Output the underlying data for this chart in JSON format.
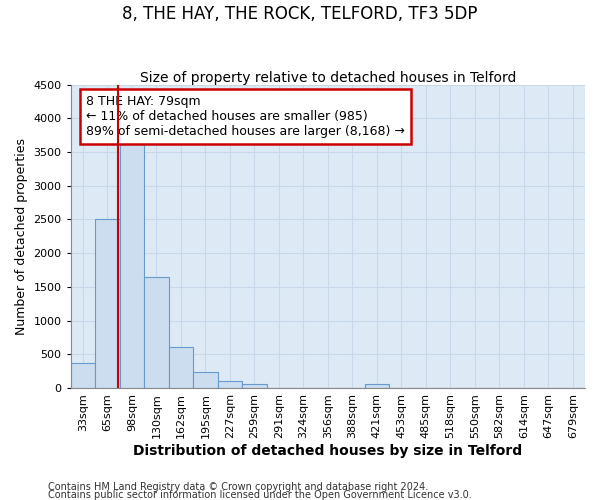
{
  "title": "8, THE HAY, THE ROCK, TELFORD, TF3 5DP",
  "subtitle": "Size of property relative to detached houses in Telford",
  "xlabel": "Distribution of detached houses by size in Telford",
  "ylabel": "Number of detached properties",
  "categories": [
    "33sqm",
    "65sqm",
    "98sqm",
    "130sqm",
    "162sqm",
    "195sqm",
    "227sqm",
    "259sqm",
    "291sqm",
    "324sqm",
    "356sqm",
    "388sqm",
    "421sqm",
    "453sqm",
    "485sqm",
    "518sqm",
    "550sqm",
    "582sqm",
    "614sqm",
    "647sqm",
    "679sqm"
  ],
  "values": [
    375,
    2500,
    3720,
    1640,
    600,
    240,
    105,
    65,
    0,
    0,
    0,
    0,
    65,
    0,
    0,
    0,
    0,
    0,
    0,
    0,
    0
  ],
  "bar_color": "#ccddf0",
  "bar_edge_color": "#6699cc",
  "grid_color": "#c8d8ea",
  "background_color": "#ddeaf5",
  "fig_background": "#ffffff",
  "annotation_line1": "8 THE HAY: 79sqm",
  "annotation_line2": "← 11% of detached houses are smaller (985)",
  "annotation_line3": "89% of semi-detached houses are larger (8,168) →",
  "annotation_box_color": "#ffffff",
  "annotation_box_edge": "#cc0000",
  "vline_color": "#cc0000",
  "vline_x": 1.43,
  "ylim": [
    0,
    4500
  ],
  "yticks": [
    0,
    500,
    1000,
    1500,
    2000,
    2500,
    3000,
    3500,
    4000,
    4500
  ],
  "footer_line1": "Contains HM Land Registry data © Crown copyright and database right 2024.",
  "footer_line2": "Contains public sector information licensed under the Open Government Licence v3.0.",
  "title_fontsize": 12,
  "subtitle_fontsize": 10,
  "xlabel_fontsize": 10,
  "ylabel_fontsize": 9,
  "tick_fontsize": 8,
  "annotation_fontsize": 9,
  "footer_fontsize": 7
}
